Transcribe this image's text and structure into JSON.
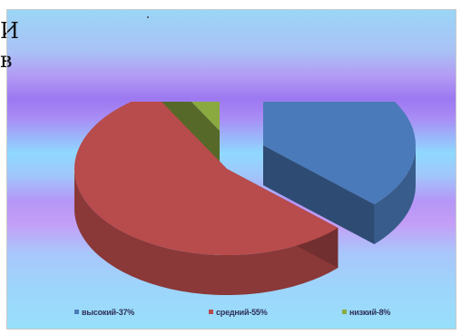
{
  "top_text": {
    "line1": "И",
    "line2": "в"
  },
  "chart_data": {
    "type": "pie",
    "title": "",
    "categories": [
      "высокий",
      "средний",
      "низкий"
    ],
    "values": [
      37,
      55,
      8
    ],
    "legend_labels": [
      "высокий-37%",
      "средний-55%",
      "низкий-8%"
    ],
    "colors": [
      "#4a7ab9",
      "#b84b4b",
      "#8aaa40"
    ],
    "legend": "bottom",
    "style": "3d-exploded"
  }
}
